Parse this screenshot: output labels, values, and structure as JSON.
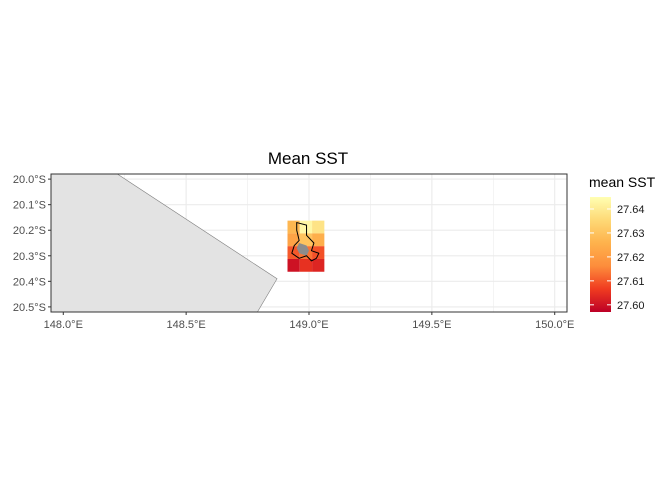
{
  "chart_data": {
    "type": "heatmap",
    "title": "Mean SST",
    "x_ticks": [
      "148.0°E",
      "148.5°E",
      "149.0°E",
      "149.5°E",
      "150.0°E"
    ],
    "x_tick_values": [
      148.0,
      148.5,
      149.0,
      149.5,
      150.0
    ],
    "y_ticks": [
      "20.0°S",
      "20.1°S",
      "20.2°S",
      "20.3°S",
      "20.4°S",
      "20.5°S"
    ],
    "y_tick_values": [
      -20.0,
      -20.1,
      -20.2,
      -20.3,
      -20.4,
      -20.5
    ],
    "xlim": [
      147.95,
      150.05
    ],
    "ylim": [
      -20.52,
      -19.98
    ],
    "grid": true,
    "legend": {
      "title": "mean SST",
      "position": "right",
      "labels": [
        "27.64",
        "27.63",
        "27.62",
        "27.61",
        "27.60"
      ],
      "label_values": [
        27.64,
        27.63,
        27.62,
        27.61,
        27.6
      ],
      "range": [
        27.597,
        27.645
      ],
      "colors": [
        "#ffffb2",
        "#fed976",
        "#feb24c",
        "#fd8d3c",
        "#f03b20",
        "#bd0026"
      ]
    },
    "cells": [
      {
        "lon": 148.9375,
        "lat": -20.1875,
        "value": 27.627
      },
      {
        "lon": 148.9875,
        "lat": -20.1875,
        "value": 27.643
      },
      {
        "lon": 149.0375,
        "lat": -20.1875,
        "value": 27.638
      },
      {
        "lon": 148.9375,
        "lat": -20.2375,
        "value": 27.622
      },
      {
        "lon": 148.9875,
        "lat": -20.2375,
        "value": 27.63
      },
      {
        "lon": 149.0375,
        "lat": -20.2375,
        "value": 27.625
      },
      {
        "lon": 148.9375,
        "lat": -20.2875,
        "value": 27.61
      },
      {
        "lon": 148.9875,
        "lat": -20.2875,
        "value": 27.613
      },
      {
        "lon": 149.0375,
        "lat": -20.2875,
        "value": 27.609
      },
      {
        "lon": 148.9375,
        "lat": -20.3375,
        "value": 27.6
      },
      {
        "lon": 148.9875,
        "lat": -20.3375,
        "value": 27.605
      },
      {
        "lon": 149.0375,
        "lat": -20.3375,
        "value": 27.603
      }
    ],
    "cell_size_deg": 0.05,
    "land_polygon": [
      [
        147.95,
        -19.98
      ],
      [
        148.22,
        -19.98
      ],
      [
        148.87,
        -20.39
      ],
      [
        148.79,
        -20.52
      ],
      [
        147.95,
        -20.52
      ]
    ],
    "reef_outline": [
      [
        148.95,
        -20.17
      ],
      [
        148.99,
        -20.18
      ],
      [
        148.99,
        -20.22
      ],
      [
        149.02,
        -20.25
      ],
      [
        149.01,
        -20.28
      ],
      [
        149.04,
        -20.29
      ],
      [
        149.03,
        -20.31
      ],
      [
        149.01,
        -20.32
      ],
      [
        148.99,
        -20.3
      ],
      [
        148.96,
        -20.31
      ],
      [
        148.93,
        -20.29
      ],
      [
        148.94,
        -20.26
      ],
      [
        148.96,
        -20.24
      ],
      [
        148.95,
        -20.2
      ]
    ],
    "reef_fill_shape": [
      [
        148.96,
        -20.25
      ],
      [
        148.99,
        -20.26
      ],
      [
        149.0,
        -20.28
      ],
      [
        148.99,
        -20.3
      ],
      [
        148.96,
        -20.29
      ],
      [
        148.95,
        -20.27
      ]
    ],
    "colors": {
      "land_fill": "#e3e3e3",
      "land_stroke": "#7f7f7f",
      "panel_border": "#333333",
      "grid": "#ebebeb",
      "reef_fill": "#8c8c8c",
      "reef_outline": "#000000"
    }
  }
}
